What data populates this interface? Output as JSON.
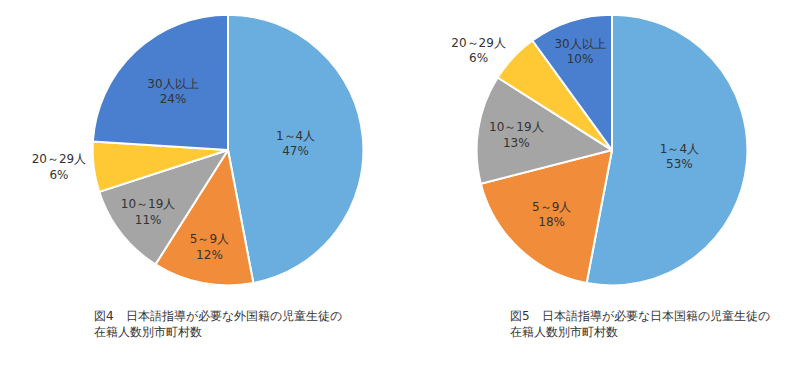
{
  "chart_data": [
    {
      "type": "pie",
      "title": "図4　日本語指導が必要な外国籍の児童生徒の\n在籍人数別市町村数",
      "categories": [
        "1～4人",
        "5～9人",
        "10～19人",
        "20～29人",
        "30人以上"
      ],
      "values": [
        47,
        12,
        11,
        6,
        24
      ],
      "value_labels": [
        "47%",
        "12%",
        "11%",
        "6%",
        "24%"
      ],
      "colors": [
        "#6aaedf",
        "#f08c3a",
        "#a5a5a5",
        "#ffc936",
        "#4a7fcf"
      ],
      "data_labels": true
    },
    {
      "type": "pie",
      "title": "図5　日本語指導が必要な日本国籍の児童生徒の\n在籍人数別市町村数",
      "categories": [
        "1～4人",
        "5～9人",
        "10～19人",
        "20～29人",
        "30人以上"
      ],
      "values": [
        53,
        18,
        13,
        6,
        10
      ],
      "value_labels": [
        "53%",
        "18%",
        "13%",
        "6%",
        "10%"
      ],
      "colors": [
        "#6aaedf",
        "#f08c3a",
        "#a5a5a5",
        "#ffc936",
        "#4a7fcf"
      ],
      "data_labels": true
    }
  ]
}
